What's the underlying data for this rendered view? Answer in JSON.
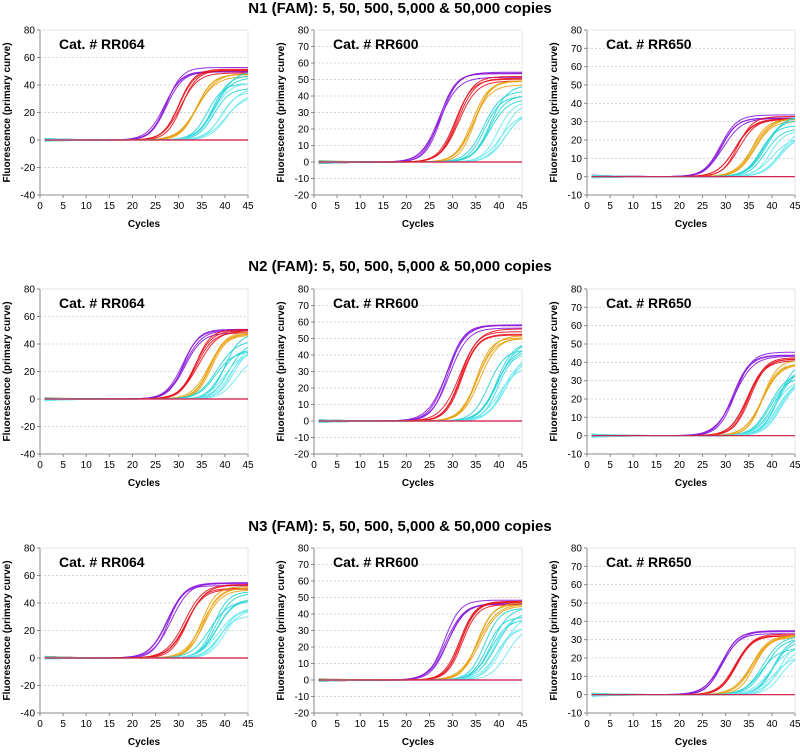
{
  "row_titles": [
    "N1 (FAM): 5, 50, 500, 5,000 & 50,000 copies",
    "N2 (FAM): 5, 50, 500, 5,000 & 50,000 copies",
    "N3 (FAM): 5, 50, 500, 5,000 & 50,000 copies"
  ],
  "colors": {
    "copies_50000": "#8a1adb",
    "copies_5000": "#e8101a",
    "copies_500": "#e8a00a",
    "copies_50": "#22d3d6",
    "copies_5": "#6ae8f0",
    "ntc": "#d01040"
  },
  "chart_data": [
    {
      "type": "line",
      "row": 0,
      "col": 0,
      "title": "Cat. # RR064",
      "xlabel": "Cycles",
      "ylabel": "Fluorescence (primary curve)",
      "xlim": [
        0,
        45
      ],
      "ylim": [
        -40,
        80
      ],
      "xticks": [
        0,
        5,
        10,
        15,
        20,
        25,
        30,
        35,
        40,
        45
      ],
      "yticks": [
        -40,
        -20,
        0,
        20,
        40,
        60,
        80
      ],
      "grid": true,
      "series": [
        {
          "name": "50,000 copies",
          "ct": 27,
          "plateau": 51
        },
        {
          "name": "5,000 copies",
          "ct": 30.5,
          "plateau": 50
        },
        {
          "name": "500 copies",
          "ct": 34,
          "plateau": 48
        },
        {
          "name": "50 copies",
          "ct": 37,
          "plateau": 44
        },
        {
          "name": "5 copies",
          "ct": 39,
          "plateau": 36
        }
      ]
    },
    {
      "type": "line",
      "row": 0,
      "col": 1,
      "title": "Cat. # RR600",
      "xlabel": "Cycles",
      "ylabel": "Fluorescence (primary curve)",
      "xlim": [
        0,
        45
      ],
      "ylim": [
        -20,
        80
      ],
      "xticks": [
        0,
        5,
        10,
        15,
        20,
        25,
        30,
        35,
        40,
        45
      ],
      "yticks": [
        -20,
        -10,
        0,
        10,
        20,
        30,
        40,
        50,
        60,
        70,
        80
      ],
      "grid": true,
      "series": [
        {
          "name": "50,000 copies",
          "ct": 27.5,
          "plateau": 53
        },
        {
          "name": "5,000 copies",
          "ct": 31,
          "plateau": 50
        },
        {
          "name": "500 copies",
          "ct": 34.5,
          "plateau": 48
        },
        {
          "name": "50 copies",
          "ct": 38,
          "plateau": 42
        },
        {
          "name": "5 copies",
          "ct": 40,
          "plateau": 33
        }
      ]
    },
    {
      "type": "line",
      "row": 0,
      "col": 2,
      "title": "Cat. # RR650",
      "xlabel": "Cycles",
      "ylabel": "Fluorescence (primary curve)",
      "xlim": [
        0,
        45
      ],
      "ylim": [
        -10,
        80
      ],
      "xticks": [
        0,
        5,
        10,
        15,
        20,
        25,
        30,
        35,
        40,
        45
      ],
      "yticks": [
        -10,
        0,
        10,
        20,
        30,
        40,
        50,
        60,
        70,
        80
      ],
      "grid": true,
      "series": [
        {
          "name": "50,000 copies",
          "ct": 29,
          "plateau": 33
        },
        {
          "name": "5,000 copies",
          "ct": 32.5,
          "plateau": 32
        },
        {
          "name": "500 copies",
          "ct": 36,
          "plateau": 31
        },
        {
          "name": "50 copies",
          "ct": 39,
          "plateau": 29
        },
        {
          "name": "5 copies",
          "ct": 41,
          "plateau": 26
        }
      ]
    },
    {
      "type": "line",
      "row": 1,
      "col": 0,
      "title": "Cat. # RR064",
      "xlabel": "Cycles",
      "ylabel": "Fluorescence (primary curve)",
      "xlim": [
        0,
        45
      ],
      "ylim": [
        -40,
        80
      ],
      "xticks": [
        0,
        5,
        10,
        15,
        20,
        25,
        30,
        35,
        40,
        45
      ],
      "yticks": [
        -40,
        -20,
        0,
        20,
        40,
        60,
        80
      ],
      "grid": true,
      "series": [
        {
          "name": "50,000 copies",
          "ct": 31,
          "plateau": 50
        },
        {
          "name": "5,000 copies",
          "ct": 34,
          "plateau": 49
        },
        {
          "name": "500 copies",
          "ct": 37,
          "plateau": 47
        },
        {
          "name": "50 copies",
          "ct": 39.5,
          "plateau": 42
        },
        {
          "name": "5 copies",
          "ct": 41,
          "plateau": 34
        }
      ]
    },
    {
      "type": "line",
      "row": 1,
      "col": 1,
      "title": "Cat. # RR600",
      "xlabel": "Cycles",
      "ylabel": "Fluorescence (primary curve)",
      "xlim": [
        0,
        45
      ],
      "ylim": [
        -20,
        80
      ],
      "xticks": [
        0,
        5,
        10,
        15,
        20,
        25,
        30,
        35,
        40,
        45
      ],
      "yticks": [
        -20,
        -10,
        0,
        10,
        20,
        30,
        40,
        50,
        60,
        70,
        80
      ],
      "grid": true,
      "series": [
        {
          "name": "50,000 copies",
          "ct": 29,
          "plateau": 56
        },
        {
          "name": "5,000 copies",
          "ct": 32,
          "plateau": 54
        },
        {
          "name": "500 copies",
          "ct": 35.5,
          "plateau": 52
        },
        {
          "name": "50 copies",
          "ct": 38.5,
          "plateau": 48
        },
        {
          "name": "5 copies",
          "ct": 40.5,
          "plateau": 40
        }
      ]
    },
    {
      "type": "line",
      "row": 1,
      "col": 2,
      "title": "Cat. # RR650",
      "xlabel": "Cycles",
      "ylabel": "Fluorescence (primary curve)",
      "xlim": [
        0,
        45
      ],
      "ylim": [
        -10,
        80
      ],
      "xticks": [
        0,
        5,
        10,
        15,
        20,
        25,
        30,
        35,
        40,
        45
      ],
      "yticks": [
        -10,
        0,
        10,
        20,
        30,
        40,
        50,
        60,
        70,
        80
      ],
      "grid": true,
      "series": [
        {
          "name": "50,000 copies",
          "ct": 32,
          "plateau": 44
        },
        {
          "name": "5,000 copies",
          "ct": 35,
          "plateau": 42
        },
        {
          "name": "500 copies",
          "ct": 38,
          "plateau": 40
        },
        {
          "name": "50 copies",
          "ct": 40.5,
          "plateau": 36
        },
        {
          "name": "5 copies",
          "ct": 42,
          "plateau": 30
        }
      ]
    },
    {
      "type": "line",
      "row": 2,
      "col": 0,
      "title": "Cat. # RR064",
      "xlabel": "Cycles",
      "ylabel": "Fluorescence (primary curve)",
      "xlim": [
        0,
        45
      ],
      "ylim": [
        -40,
        80
      ],
      "xticks": [
        0,
        5,
        10,
        15,
        20,
        25,
        30,
        35,
        40,
        45
      ],
      "yticks": [
        -40,
        -20,
        0,
        20,
        40,
        60,
        80
      ],
      "grid": true,
      "series": [
        {
          "name": "50,000 copies",
          "ct": 28,
          "plateau": 53
        },
        {
          "name": "5,000 copies",
          "ct": 31.5,
          "plateau": 52
        },
        {
          "name": "500 copies",
          "ct": 35,
          "plateau": 50
        },
        {
          "name": "50 copies",
          "ct": 38,
          "plateau": 42
        },
        {
          "name": "5 copies",
          "ct": 40,
          "plateau": 32
        }
      ]
    },
    {
      "type": "line",
      "row": 2,
      "col": 1,
      "title": "Cat. # RR600",
      "xlabel": "Cycles",
      "ylabel": "Fluorescence (primary curve)",
      "xlim": [
        0,
        45
      ],
      "ylim": [
        -20,
        80
      ],
      "xticks": [
        0,
        5,
        10,
        15,
        20,
        25,
        30,
        35,
        40,
        45
      ],
      "yticks": [
        -20,
        -10,
        0,
        10,
        20,
        30,
        40,
        50,
        60,
        70,
        80
      ],
      "grid": true,
      "series": [
        {
          "name": "50,000 copies",
          "ct": 28.5,
          "plateau": 47
        },
        {
          "name": "5,000 copies",
          "ct": 32,
          "plateau": 47
        },
        {
          "name": "500 copies",
          "ct": 35.5,
          "plateau": 46
        },
        {
          "name": "50 copies",
          "ct": 38.5,
          "plateau": 42
        },
        {
          "name": "5 copies",
          "ct": 40.5,
          "plateau": 35
        }
      ]
    },
    {
      "type": "line",
      "row": 2,
      "col": 2,
      "title": "Cat. # RR650",
      "xlabel": "Cycles",
      "ylabel": "Fluorescence (primary curve)",
      "xlim": [
        0,
        45
      ],
      "ylim": [
        -10,
        80
      ],
      "xticks": [
        0,
        5,
        10,
        15,
        20,
        25,
        30,
        35,
        40,
        45
      ],
      "yticks": [
        -10,
        0,
        10,
        20,
        30,
        40,
        50,
        60,
        70,
        80
      ],
      "grid": true,
      "series": [
        {
          "name": "50,000 copies",
          "ct": 29,
          "plateau": 34
        },
        {
          "name": "5,000 copies",
          "ct": 32.5,
          "plateau": 33
        },
        {
          "name": "500 copies",
          "ct": 36,
          "plateau": 32
        },
        {
          "name": "50 copies",
          "ct": 39,
          "plateau": 29
        },
        {
          "name": "5 copies",
          "ct": 41,
          "plateau": 25
        }
      ]
    }
  ]
}
